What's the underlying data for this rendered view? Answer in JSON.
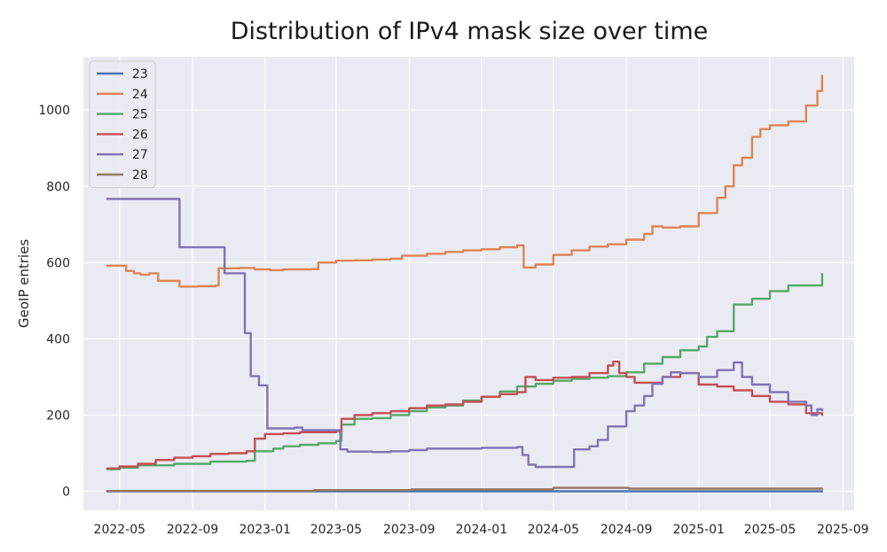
{
  "chart_data": {
    "type": "line",
    "title": "Distribution of IPv4 mask size over time",
    "xlabel": "",
    "ylabel": "GeoIP entries",
    "xlim": [
      "2022-03-01",
      "2025-09-20"
    ],
    "ylim": [
      -50,
      1140
    ],
    "x_ticks": [
      "2022-05",
      "2022-09",
      "2023-01",
      "2023-05",
      "2023-09",
      "2024-01",
      "2024-05",
      "2024-09",
      "2025-01",
      "2025-05",
      "2025-09"
    ],
    "y_ticks": [
      0,
      200,
      400,
      600,
      800,
      1000
    ],
    "grid": true,
    "legend_position": "top-left",
    "background": "#eaeaf2",
    "series": [
      {
        "name": "23",
        "color": "#4c72b0",
        "points": [
          [
            "2022-04-10",
            0
          ],
          [
            "2025-07-28",
            0
          ]
        ]
      },
      {
        "name": "24",
        "color": "#dd8452",
        "points": [
          [
            "2022-04-10",
            592
          ],
          [
            "2022-05-10",
            592
          ],
          [
            "2022-05-12",
            578
          ],
          [
            "2022-05-25",
            572
          ],
          [
            "2022-06-05",
            568
          ],
          [
            "2022-06-20",
            572
          ],
          [
            "2022-07-05",
            552
          ],
          [
            "2022-08-05",
            552
          ],
          [
            "2022-08-10",
            537
          ],
          [
            "2022-09-10",
            538
          ],
          [
            "2022-10-10",
            540
          ],
          [
            "2022-10-15",
            585
          ],
          [
            "2022-11-20",
            586
          ],
          [
            "2022-12-15",
            582
          ],
          [
            "2023-01-10",
            580
          ],
          [
            "2023-02-01",
            582
          ],
          [
            "2023-03-20",
            583
          ],
          [
            "2023-04-01",
            600
          ],
          [
            "2023-05-01",
            605
          ],
          [
            "2023-06-01",
            606
          ],
          [
            "2023-07-01",
            608
          ],
          [
            "2023-08-01",
            610
          ],
          [
            "2023-08-20",
            618
          ],
          [
            "2023-10-01",
            623
          ],
          [
            "2023-11-01",
            628
          ],
          [
            "2023-12-01",
            632
          ],
          [
            "2024-01-01",
            635
          ],
          [
            "2024-02-01",
            640
          ],
          [
            "2024-03-01",
            645
          ],
          [
            "2024-03-10",
            645
          ],
          [
            "2024-03-12",
            587
          ],
          [
            "2024-04-01",
            595
          ],
          [
            "2024-05-01",
            620
          ],
          [
            "2024-06-01",
            632
          ],
          [
            "2024-07-01",
            642
          ],
          [
            "2024-08-01",
            648
          ],
          [
            "2024-09-01",
            660
          ],
          [
            "2024-10-01",
            675
          ],
          [
            "2024-10-15",
            695
          ],
          [
            "2024-11-01",
            692
          ],
          [
            "2024-12-01",
            695
          ],
          [
            "2025-01-01",
            730
          ],
          [
            "2025-02-01",
            770
          ],
          [
            "2025-02-15",
            800
          ],
          [
            "2025-03-01",
            855
          ],
          [
            "2025-03-15",
            875
          ],
          [
            "2025-04-01",
            930
          ],
          [
            "2025-04-15",
            950
          ],
          [
            "2025-05-01",
            960
          ],
          [
            "2025-06-01",
            970
          ],
          [
            "2025-07-01",
            1012
          ],
          [
            "2025-07-20",
            1050
          ],
          [
            "2025-07-28",
            1090
          ]
        ]
      },
      {
        "name": "25",
        "color": "#55a868",
        "points": [
          [
            "2022-04-10",
            58
          ],
          [
            "2022-05-01",
            62
          ],
          [
            "2022-06-01",
            68
          ],
          [
            "2022-08-01",
            72
          ],
          [
            "2022-10-01",
            78
          ],
          [
            "2022-12-01",
            80
          ],
          [
            "2022-12-15",
            105
          ],
          [
            "2023-01-15",
            112
          ],
          [
            "2023-02-01",
            118
          ],
          [
            "2023-03-01",
            122
          ],
          [
            "2023-04-01",
            126
          ],
          [
            "2023-05-01",
            132
          ],
          [
            "2023-05-10",
            175
          ],
          [
            "2023-06-01",
            190
          ],
          [
            "2023-07-01",
            192
          ],
          [
            "2023-08-01",
            200
          ],
          [
            "2023-09-01",
            210
          ],
          [
            "2023-10-01",
            220
          ],
          [
            "2023-11-01",
            225
          ],
          [
            "2023-12-01",
            238
          ],
          [
            "2024-01-01",
            248
          ],
          [
            "2024-02-01",
            262
          ],
          [
            "2024-03-01",
            275
          ],
          [
            "2024-04-01",
            282
          ],
          [
            "2024-05-01",
            290
          ],
          [
            "2024-06-01",
            295
          ],
          [
            "2024-07-01",
            298
          ],
          [
            "2024-08-01",
            302
          ],
          [
            "2024-09-01",
            312
          ],
          [
            "2024-10-01",
            335
          ],
          [
            "2024-11-01",
            352
          ],
          [
            "2024-12-01",
            370
          ],
          [
            "2025-01-01",
            380
          ],
          [
            "2025-01-15",
            405
          ],
          [
            "2025-02-01",
            420
          ],
          [
            "2025-03-01",
            490
          ],
          [
            "2025-04-01",
            505
          ],
          [
            "2025-05-01",
            525
          ],
          [
            "2025-06-01",
            540
          ],
          [
            "2025-07-01",
            540
          ],
          [
            "2025-07-28",
            570
          ]
        ]
      },
      {
        "name": "26",
        "color": "#c44e52",
        "points": [
          [
            "2022-04-10",
            60
          ],
          [
            "2022-05-01",
            65
          ],
          [
            "2022-06-01",
            72
          ],
          [
            "2022-07-01",
            82
          ],
          [
            "2022-08-01",
            88
          ],
          [
            "2022-09-01",
            92
          ],
          [
            "2022-10-01",
            98
          ],
          [
            "2022-11-01",
            100
          ],
          [
            "2022-12-01",
            105
          ],
          [
            "2022-12-15",
            138
          ],
          [
            "2023-01-01",
            150
          ],
          [
            "2023-02-01",
            152
          ],
          [
            "2023-03-01",
            155
          ],
          [
            "2023-05-01",
            158
          ],
          [
            "2023-05-10",
            190
          ],
          [
            "2023-06-01",
            200
          ],
          [
            "2023-07-01",
            205
          ],
          [
            "2023-08-01",
            210
          ],
          [
            "2023-09-01",
            218
          ],
          [
            "2023-10-01",
            225
          ],
          [
            "2023-11-01",
            228
          ],
          [
            "2023-12-01",
            235
          ],
          [
            "2024-01-01",
            248
          ],
          [
            "2024-02-01",
            255
          ],
          [
            "2024-03-01",
            260
          ],
          [
            "2024-03-15",
            300
          ],
          [
            "2024-04-01",
            292
          ],
          [
            "2024-05-01",
            298
          ],
          [
            "2024-06-01",
            300
          ],
          [
            "2024-07-01",
            310
          ],
          [
            "2024-08-01",
            330
          ],
          [
            "2024-08-10",
            340
          ],
          [
            "2024-08-20",
            310
          ],
          [
            "2024-09-01",
            300
          ],
          [
            "2024-09-15",
            285
          ],
          [
            "2024-10-01",
            285
          ],
          [
            "2024-11-01",
            300
          ],
          [
            "2024-12-01",
            310
          ],
          [
            "2025-01-01",
            280
          ],
          [
            "2025-02-01",
            275
          ],
          [
            "2025-03-01",
            265
          ],
          [
            "2025-04-01",
            250
          ],
          [
            "2025-05-01",
            235
          ],
          [
            "2025-06-01",
            228
          ],
          [
            "2025-07-01",
            205
          ],
          [
            "2025-07-28",
            200
          ]
        ]
      },
      {
        "name": "27",
        "color": "#8172b3",
        "points": [
          [
            "2022-04-10",
            767
          ],
          [
            "2022-08-05",
            767
          ],
          [
            "2022-08-10",
            640
          ],
          [
            "2022-10-20",
            640
          ],
          [
            "2022-10-25",
            572
          ],
          [
            "2022-11-25",
            572
          ],
          [
            "2022-11-28",
            415
          ],
          [
            "2022-12-05",
            415
          ],
          [
            "2022-12-08",
            302
          ],
          [
            "2022-12-20",
            302
          ],
          [
            "2022-12-22",
            278
          ],
          [
            "2023-01-01",
            278
          ],
          [
            "2023-01-05",
            165
          ],
          [
            "2023-02-20",
            167
          ],
          [
            "2023-03-05",
            160
          ],
          [
            "2023-05-05",
            160
          ],
          [
            "2023-05-08",
            110
          ],
          [
            "2023-05-20",
            104
          ],
          [
            "2023-07-01",
            103
          ],
          [
            "2023-08-01",
            105
          ],
          [
            "2023-09-01",
            108
          ],
          [
            "2023-10-01",
            112
          ],
          [
            "2024-01-01",
            114
          ],
          [
            "2024-03-01",
            116
          ],
          [
            "2024-03-10",
            95
          ],
          [
            "2024-03-20",
            70
          ],
          [
            "2024-04-01",
            64
          ],
          [
            "2024-05-01",
            64
          ],
          [
            "2024-06-01",
            64
          ],
          [
            "2024-06-05",
            110
          ],
          [
            "2024-07-01",
            118
          ],
          [
            "2024-07-15",
            135
          ],
          [
            "2024-08-01",
            170
          ],
          [
            "2024-09-01",
            210
          ],
          [
            "2024-09-15",
            225
          ],
          [
            "2024-10-01",
            250
          ],
          [
            "2024-10-15",
            282
          ],
          [
            "2024-11-01",
            300
          ],
          [
            "2024-11-15",
            312
          ],
          [
            "2024-12-01",
            310
          ],
          [
            "2025-01-01",
            300
          ],
          [
            "2025-02-01",
            318
          ],
          [
            "2025-03-01",
            338
          ],
          [
            "2025-03-15",
            300
          ],
          [
            "2025-04-01",
            280
          ],
          [
            "2025-05-01",
            260
          ],
          [
            "2025-06-01",
            235
          ],
          [
            "2025-07-01",
            225
          ],
          [
            "2025-07-10",
            200
          ],
          [
            "2025-07-20",
            215
          ],
          [
            "2025-07-28",
            212
          ]
        ]
      },
      {
        "name": "28",
        "color": "#937860",
        "points": [
          [
            "2022-04-10",
            1
          ],
          [
            "2023-03-20",
            1
          ],
          [
            "2023-03-25",
            3
          ],
          [
            "2023-09-01",
            3
          ],
          [
            "2023-09-05",
            5
          ],
          [
            "2024-04-25",
            5
          ],
          [
            "2024-05-01",
            9
          ],
          [
            "2024-09-01",
            9
          ],
          [
            "2024-09-05",
            7
          ],
          [
            "2025-07-28",
            7
          ]
        ]
      }
    ]
  }
}
